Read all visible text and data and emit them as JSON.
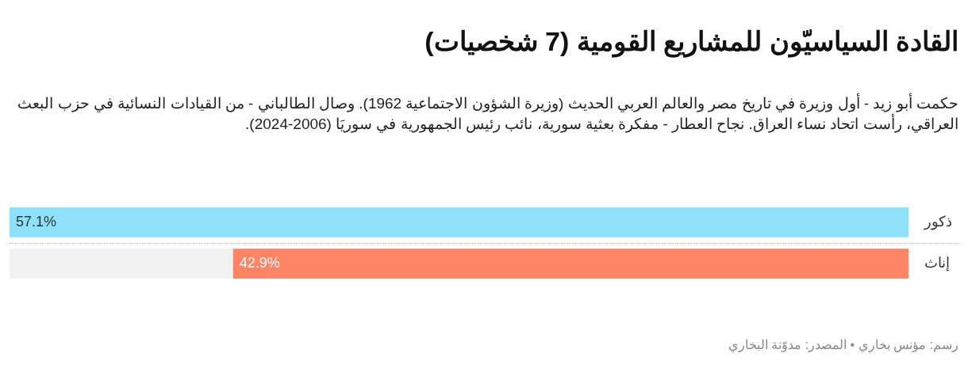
{
  "chart_data": {
    "type": "bar",
    "orientation": "horizontal",
    "title": "القادة السياسيّون للمشاريع القومية (7 شخصيات)",
    "subtitle": "حكمت أبو زيد - أول وزيرة في تاريخ مصر والعالم العربي الحديث (وزيرة الشؤون الاجتماعية 1962). وصال الطالباني - من القيادات النسائية في حزب البعث العراقي، رأست اتحاد نساء العراق. نجاح العطار - مفكرة بعثية سورية، نائب رئيس الجمهورية في سوريَا (2006-2024).",
    "categories": [
      "ذكور",
      "إناث"
    ],
    "values": [
      57.1,
      42.9
    ],
    "colors": [
      "#8ee1fb",
      "#ff8466"
    ],
    "value_labels": [
      "57.1%",
      "42.9%"
    ],
    "xlim": [
      57.1,
      0
    ],
    "tick_labels": "y",
    "annotations": [
      "رسم: مؤنس بخاري • المصدر: مدوّنة البخاري"
    ]
  }
}
